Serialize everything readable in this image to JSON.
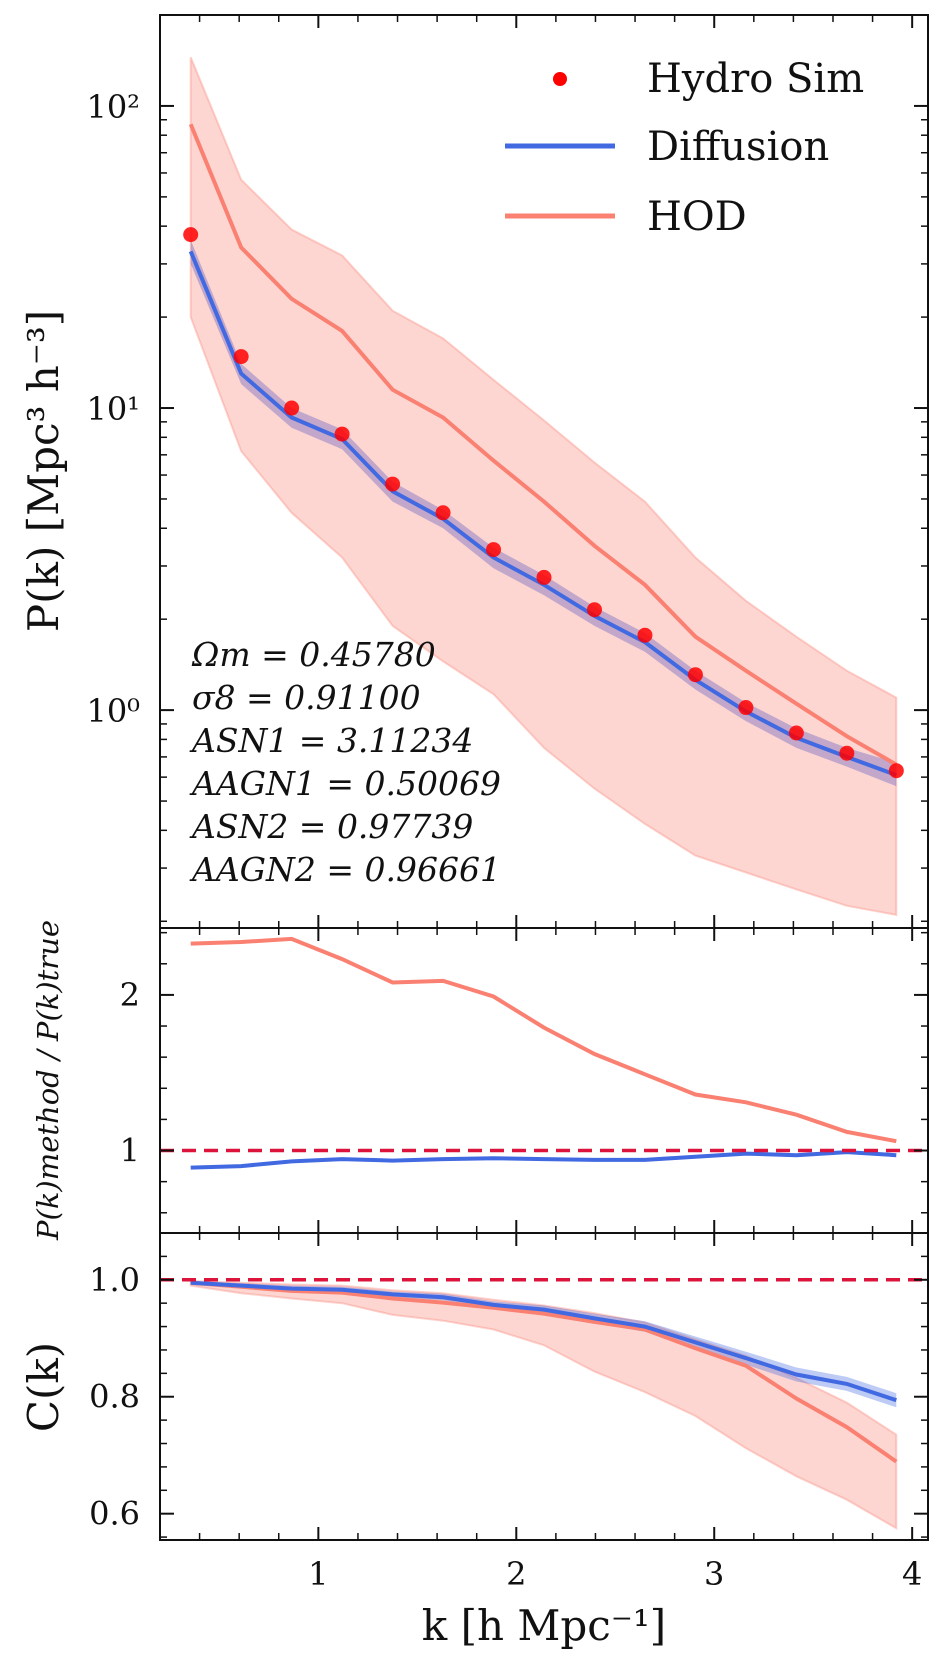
{
  "chart_data": [
    {
      "type": "line",
      "panel": "top",
      "yscale": "log",
      "ylabel": "P(k) [Mpc³ h⁻³]",
      "xlim": [
        0.2,
        4.08
      ],
      "ylim": [
        0.19,
        200
      ],
      "y_tick_labels": [
        {
          "value": 100,
          "text": "10²"
        },
        {
          "value": 10,
          "text": "10¹"
        },
        {
          "value": 1,
          "text": "10⁰"
        }
      ],
      "x": [
        0.355,
        0.61,
        0.865,
        1.12,
        1.375,
        1.63,
        1.885,
        2.14,
        2.395,
        2.65,
        2.905,
        3.16,
        3.415,
        3.67,
        3.92
      ],
      "series": [
        {
          "name": "Hydro Sim",
          "kind": "scatter",
          "color": "#ff0000",
          "values": [
            37.5,
            14.8,
            10.0,
            8.2,
            5.6,
            4.5,
            3.4,
            2.75,
            2.15,
            1.77,
            1.31,
            1.02,
            0.84,
            0.72,
            0.63
          ]
        },
        {
          "name": "Diffusion",
          "kind": "line",
          "color": "#4169e1",
          "values": [
            33.0,
            13.0,
            9.3,
            7.9,
            5.3,
            4.3,
            3.2,
            2.6,
            2.05,
            1.68,
            1.26,
            0.99,
            0.81,
            0.7,
            0.61
          ],
          "band_low": [
            30.0,
            12.0,
            8.6,
            7.3,
            4.9,
            4.0,
            2.95,
            2.4,
            1.9,
            1.56,
            1.17,
            0.92,
            0.75,
            0.65,
            0.56
          ],
          "band_high": [
            36.0,
            14.0,
            10.0,
            8.5,
            5.7,
            4.6,
            3.45,
            2.8,
            2.2,
            1.8,
            1.35,
            1.06,
            0.87,
            0.75,
            0.67
          ]
        },
        {
          "name": "HOD",
          "kind": "line",
          "color": "#fa8072",
          "values": [
            87,
            34,
            23,
            18,
            11.5,
            9.3,
            6.7,
            4.9,
            3.5,
            2.6,
            1.75,
            1.35,
            1.05,
            0.82,
            0.66
          ],
          "band_low": [
            20,
            7.2,
            4.5,
            3.2,
            1.9,
            1.45,
            1.13,
            0.75,
            0.55,
            0.42,
            0.33,
            0.29,
            0.255,
            0.225,
            0.21
          ],
          "band_high": [
            145,
            57,
            39,
            32,
            21,
            17,
            12.4,
            9.1,
            6.6,
            4.9,
            3.2,
            2.3,
            1.75,
            1.35,
            1.1
          ]
        }
      ],
      "legend": {
        "position": "top-right",
        "entries": [
          "Hydro Sim",
          "Diffusion",
          "HOD"
        ]
      },
      "annotation_lines": [
        "Ωm = 0.45780",
        "σ8 = 0.91100",
        "ASN1 = 3.11234",
        "AAGN1 = 0.50069",
        "ASN2 = 0.97739",
        "AAGN2 = 0.96661"
      ]
    },
    {
      "type": "line",
      "panel": "middle",
      "ylabel": "P(k)method / P(k)true",
      "xlim": [
        0.2,
        4.08
      ],
      "ylim": [
        0.47,
        2.43
      ],
      "y_ticks": [
        1,
        2
      ],
      "x": [
        0.355,
        0.61,
        0.865,
        1.12,
        1.375,
        1.63,
        1.885,
        2.14,
        2.395,
        2.65,
        2.905,
        3.16,
        3.415,
        3.67,
        3.92
      ],
      "series": [
        {
          "name": "HOD",
          "color": "#fa8072",
          "values": [
            2.33,
            2.34,
            2.36,
            2.23,
            2.08,
            2.09,
            1.99,
            1.79,
            1.62,
            1.49,
            1.36,
            1.31,
            1.23,
            1.12,
            1.06
          ]
        },
        {
          "name": "Diffusion",
          "color": "#4169e1",
          "values": [
            0.89,
            0.9,
            0.93,
            0.945,
            0.935,
            0.945,
            0.95,
            0.945,
            0.94,
            0.94,
            0.96,
            0.98,
            0.97,
            0.99,
            0.97
          ]
        }
      ],
      "reference_line": {
        "y": 1.0,
        "color": "#dc143c",
        "style": "dashed"
      }
    },
    {
      "type": "line",
      "panel": "bottom",
      "ylabel": "C(k)",
      "xlabel": "k [h Mpc⁻¹]",
      "xlim": [
        0.2,
        4.08
      ],
      "ylim": [
        0.555,
        1.08
      ],
      "y_ticks": [
        0.6,
        0.8,
        1.0
      ],
      "y_tick_labels": [
        "0.6",
        "0.8",
        "1.0"
      ],
      "x_ticks": [
        1,
        2,
        3,
        4
      ],
      "x_tick_labels": [
        "1",
        "2",
        "3",
        "4"
      ],
      "x": [
        0.355,
        0.61,
        0.865,
        1.12,
        1.375,
        1.63,
        1.885,
        2.14,
        2.395,
        2.65,
        2.905,
        3.16,
        3.415,
        3.67,
        3.92
      ],
      "series": [
        {
          "name": "Diffusion",
          "color": "#4169e1",
          "values": [
            0.995,
            0.99,
            0.985,
            0.983,
            0.975,
            0.97,
            0.957,
            0.949,
            0.934,
            0.92,
            0.893,
            0.866,
            0.838,
            0.822,
            0.794
          ],
          "band_low": [
            0.993,
            0.987,
            0.981,
            0.979,
            0.97,
            0.965,
            0.951,
            0.942,
            0.926,
            0.911,
            0.883,
            0.855,
            0.826,
            0.81,
            0.782
          ],
          "band_high": [
            0.998,
            0.994,
            0.99,
            0.988,
            0.98,
            0.976,
            0.963,
            0.956,
            0.942,
            0.929,
            0.903,
            0.877,
            0.85,
            0.834,
            0.806
          ]
        },
        {
          "name": "HOD",
          "color": "#fa8072",
          "values": [
            0.995,
            0.988,
            0.981,
            0.978,
            0.968,
            0.961,
            0.952,
            0.942,
            0.928,
            0.915,
            0.883,
            0.853,
            0.797,
            0.748,
            0.689
          ],
          "band_low": [
            0.99,
            0.977,
            0.968,
            0.96,
            0.94,
            0.93,
            0.915,
            0.888,
            0.843,
            0.808,
            0.767,
            0.712,
            0.664,
            0.624,
            0.575
          ],
          "band_high": [
            0.998,
            0.995,
            0.992,
            0.99,
            0.982,
            0.977,
            0.966,
            0.956,
            0.943,
            0.927,
            0.898,
            0.87,
            0.832,
            0.79,
            0.735
          ]
        }
      ],
      "reference_line": {
        "y": 1.0,
        "color": "#dc143c",
        "style": "dashed"
      }
    }
  ]
}
